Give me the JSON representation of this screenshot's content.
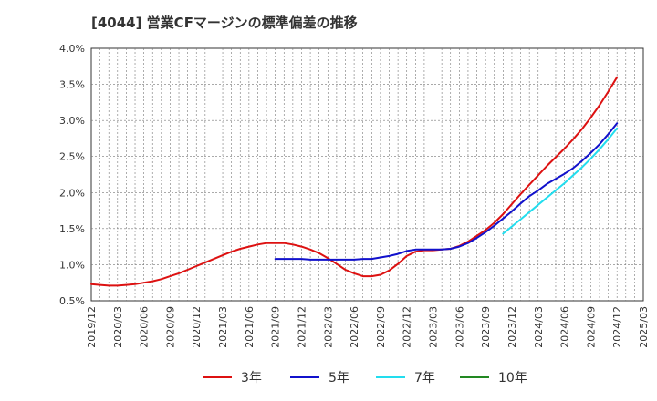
{
  "chart_data": {
    "type": "line",
    "title": "[4044]  営業CFマージンの標準偏差の推移",
    "xlabel": "",
    "ylabel": "",
    "ylim": [
      0.5,
      4.0
    ],
    "yticks": [
      "0.5%",
      "1.0%",
      "1.5%",
      "2.0%",
      "2.5%",
      "3.0%",
      "3.5%",
      "4.0%"
    ],
    "xticks": [
      "2019/12",
      "2020/03",
      "2020/06",
      "2020/09",
      "2020/12",
      "2021/03",
      "2021/06",
      "2021/09",
      "2021/12",
      "2022/03",
      "2022/06",
      "2022/09",
      "2022/12",
      "2023/03",
      "2023/06",
      "2023/09",
      "2023/12",
      "2024/03",
      "2024/06",
      "2024/09",
      "2024/12",
      "2025/03"
    ],
    "grid": true,
    "legend_position": "bottom",
    "series": [
      {
        "name": "3年",
        "color": "#dd1111",
        "points": [
          [
            "2019/12",
            0.73
          ],
          [
            "2020/01",
            0.72
          ],
          [
            "2020/02",
            0.71
          ],
          [
            "2020/03",
            0.71
          ],
          [
            "2020/04",
            0.72
          ],
          [
            "2020/05",
            0.73
          ],
          [
            "2020/06",
            0.75
          ],
          [
            "2020/07",
            0.77
          ],
          [
            "2020/08",
            0.8
          ],
          [
            "2020/09",
            0.84
          ],
          [
            "2020/10",
            0.88
          ],
          [
            "2020/11",
            0.93
          ],
          [
            "2020/12",
            0.98
          ],
          [
            "2021/01",
            1.03
          ],
          [
            "2021/02",
            1.08
          ],
          [
            "2021/03",
            1.13
          ],
          [
            "2021/04",
            1.18
          ],
          [
            "2021/05",
            1.22
          ],
          [
            "2021/06",
            1.25
          ],
          [
            "2021/07",
            1.28
          ],
          [
            "2021/08",
            1.3
          ],
          [
            "2021/09",
            1.3
          ],
          [
            "2021/10",
            1.3
          ],
          [
            "2021/11",
            1.28
          ],
          [
            "2021/12",
            1.25
          ],
          [
            "2022/01",
            1.21
          ],
          [
            "2022/02",
            1.16
          ],
          [
            "2022/03",
            1.09
          ],
          [
            "2022/04",
            1.01
          ],
          [
            "2022/05",
            0.93
          ],
          [
            "2022/06",
            0.88
          ],
          [
            "2022/07",
            0.84
          ],
          [
            "2022/08",
            0.84
          ],
          [
            "2022/09",
            0.86
          ],
          [
            "2022/10",
            0.92
          ],
          [
            "2022/11",
            1.01
          ],
          [
            "2022/12",
            1.12
          ],
          [
            "2023/01",
            1.18
          ],
          [
            "2023/02",
            1.2
          ],
          [
            "2023/03",
            1.2
          ],
          [
            "2023/04",
            1.21
          ],
          [
            "2023/05",
            1.22
          ],
          [
            "2023/06",
            1.26
          ],
          [
            "2023/07",
            1.32
          ],
          [
            "2023/08",
            1.4
          ],
          [
            "2023/09",
            1.48
          ],
          [
            "2023/10",
            1.58
          ],
          [
            "2023/11",
            1.7
          ],
          [
            "2023/12",
            1.84
          ],
          [
            "2024/01",
            1.98
          ],
          [
            "2024/02",
            2.11
          ],
          [
            "2024/03",
            2.24
          ],
          [
            "2024/04",
            2.37
          ],
          [
            "2024/05",
            2.49
          ],
          [
            "2024/06",
            2.61
          ],
          [
            "2024/07",
            2.74
          ],
          [
            "2024/08",
            2.88
          ],
          [
            "2024/09",
            3.04
          ],
          [
            "2024/10",
            3.21
          ],
          [
            "2024/11",
            3.4
          ],
          [
            "2024/12",
            3.6
          ]
        ]
      },
      {
        "name": "5年",
        "color": "#1111cc",
        "points": [
          [
            "2021/09",
            1.08
          ],
          [
            "2021/10",
            1.08
          ],
          [
            "2021/11",
            1.08
          ],
          [
            "2021/12",
            1.08
          ],
          [
            "2022/01",
            1.07
          ],
          [
            "2022/02",
            1.07
          ],
          [
            "2022/03",
            1.07
          ],
          [
            "2022/04",
            1.07
          ],
          [
            "2022/05",
            1.07
          ],
          [
            "2022/06",
            1.07
          ],
          [
            "2022/07",
            1.08
          ],
          [
            "2022/08",
            1.08
          ],
          [
            "2022/09",
            1.1
          ],
          [
            "2022/10",
            1.12
          ],
          [
            "2022/11",
            1.15
          ],
          [
            "2022/12",
            1.19
          ],
          [
            "2023/01",
            1.21
          ],
          [
            "2023/02",
            1.21
          ],
          [
            "2023/03",
            1.21
          ],
          [
            "2023/04",
            1.21
          ],
          [
            "2023/05",
            1.22
          ],
          [
            "2023/06",
            1.25
          ],
          [
            "2023/07",
            1.3
          ],
          [
            "2023/08",
            1.37
          ],
          [
            "2023/09",
            1.45
          ],
          [
            "2023/10",
            1.54
          ],
          [
            "2023/11",
            1.64
          ],
          [
            "2023/12",
            1.74
          ],
          [
            "2024/01",
            1.85
          ],
          [
            "2024/02",
            1.95
          ],
          [
            "2024/03",
            2.03
          ],
          [
            "2024/04",
            2.12
          ],
          [
            "2024/05",
            2.19
          ],
          [
            "2024/06",
            2.26
          ],
          [
            "2024/07",
            2.34
          ],
          [
            "2024/08",
            2.44
          ],
          [
            "2024/09",
            2.55
          ],
          [
            "2024/10",
            2.67
          ],
          [
            "2024/11",
            2.81
          ],
          [
            "2024/12",
            2.96
          ]
        ]
      },
      {
        "name": "7年",
        "color": "#22ddee",
        "points": [
          [
            "2023/11",
            1.43
          ],
          [
            "2023/12",
            1.53
          ],
          [
            "2024/01",
            1.63
          ],
          [
            "2024/02",
            1.73
          ],
          [
            "2024/03",
            1.83
          ],
          [
            "2024/04",
            1.93
          ],
          [
            "2024/05",
            2.03
          ],
          [
            "2024/06",
            2.13
          ],
          [
            "2024/07",
            2.24
          ],
          [
            "2024/08",
            2.35
          ],
          [
            "2024/09",
            2.47
          ],
          [
            "2024/10",
            2.6
          ],
          [
            "2024/11",
            2.74
          ],
          [
            "2024/12",
            2.89
          ]
        ]
      },
      {
        "name": "10年",
        "color": "#228822",
        "points": []
      }
    ]
  }
}
